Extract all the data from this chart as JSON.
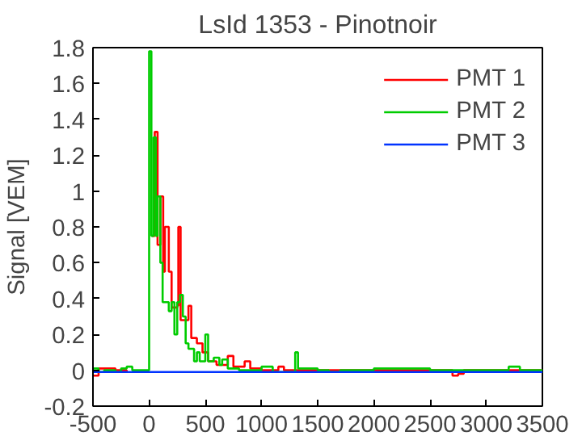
{
  "chart_data": {
    "type": "step",
    "title": "LsId 1353 - Pinotnoir",
    "ylabel": "Signal [VEM]",
    "xlim": [
      -500,
      3500
    ],
    "xticks": [
      -500,
      0,
      500,
      1000,
      1500,
      2000,
      2500,
      3000,
      3500
    ],
    "ylim": [
      -0.2,
      1.8
    ],
    "yticks": [
      -0.2,
      0,
      0.2,
      0.4,
      0.6,
      0.8,
      1,
      1.2,
      1.4,
      1.6,
      1.8
    ],
    "grid": false,
    "legend": "top right",
    "series": [
      {
        "name": "PMT 1",
        "color": "#ff0000",
        "x": [
          -500,
          -450,
          -300,
          -200,
          0,
          25,
          50,
          75,
          100,
          125,
          140,
          175,
          200,
          250,
          260,
          280,
          350,
          375,
          425,
          475,
          525,
          600,
          700,
          750,
          850,
          900,
          1000,
          1150,
          1200,
          2700,
          2750,
          2800,
          3500
        ],
        "values": [
          -0.03,
          0.01,
          0,
          -0.01,
          null,
          0.75,
          1.33,
          0.7,
          0.97,
          0.55,
          0.8,
          0.55,
          0.35,
          0.36,
          0.8,
          0.28,
          0.36,
          0.18,
          0.15,
          0.1,
          0.05,
          0.03,
          0.08,
          0.02,
          0.05,
          0.01,
          0,
          0.02,
          0,
          -0.03,
          -0.02,
          0,
          0
        ]
      },
      {
        "name": "PMT 2",
        "color": "#00cc00",
        "x": [
          -500,
          -450,
          -400,
          -300,
          -250,
          -200,
          -150,
          0,
          20,
          40,
          60,
          75,
          100,
          120,
          175,
          200,
          225,
          250,
          275,
          300,
          325,
          350,
          400,
          425,
          450,
          500,
          525,
          575,
          625,
          650,
          700,
          800,
          1000,
          1100,
          1300,
          1325,
          1500,
          1600,
          1700,
          2000,
          2500,
          3200,
          3300,
          3500
        ],
        "values": [
          0.01,
          -0.01,
          0,
          -0.01,
          0.01,
          0.02,
          0,
          1.78,
          0.75,
          1.3,
          0.75,
          0.97,
          0.6,
          0.38,
          0.33,
          0.38,
          0.2,
          0.38,
          0.42,
          0.3,
          0.15,
          0.12,
          0.05,
          0.1,
          0.05,
          0.2,
          0.05,
          0.07,
          0.03,
          0.06,
          0.01,
          0,
          0.02,
          -0.01,
          0.1,
          0.01,
          0,
          -0.01,
          0,
          0.01,
          0,
          0.02,
          0,
          0
        ]
      },
      {
        "name": "PMT 3",
        "color": "#0033ff",
        "x": [
          -500,
          0,
          1000,
          2000,
          3500
        ],
        "values": [
          -0.01,
          -0.01,
          -0.01,
          -0.01,
          -0.01
        ]
      }
    ]
  }
}
